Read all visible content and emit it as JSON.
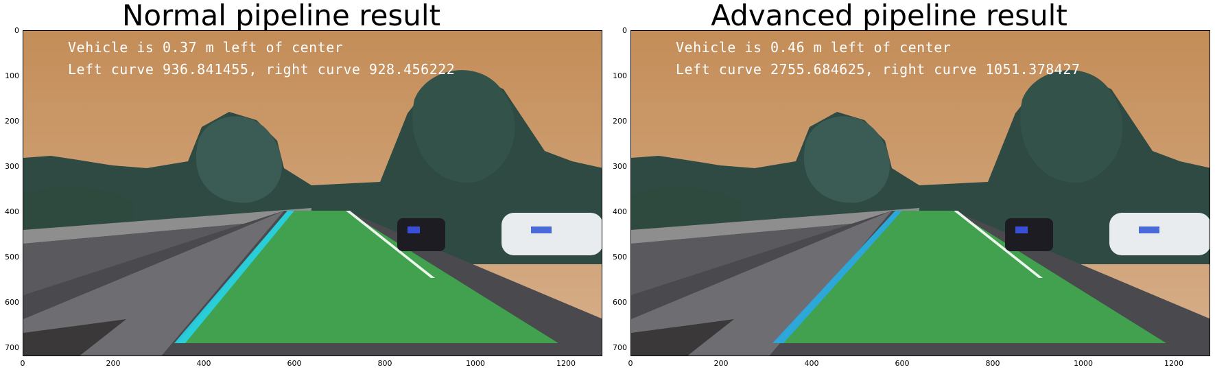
{
  "panels": [
    {
      "title": "Normal pipeline result",
      "vehicle_text": "Vehicle is 0.37 m left of center",
      "curve_text": "Left curve 936.841455, right curve 928.456222"
    },
    {
      "title": "Advanced pipeline result",
      "vehicle_text": "Vehicle is 0.46 m left of center",
      "curve_text": "Left curve 2755.684625, right curve 1051.378427"
    }
  ],
  "axes": {
    "y_ticks": [
      "0",
      "100",
      "200",
      "300",
      "400",
      "500",
      "600",
      "700"
    ],
    "x_ticks": [
      "0",
      "200",
      "400",
      "600",
      "800",
      "1000",
      "1200"
    ]
  },
  "colors": {
    "sky": "#c9935f",
    "lane_fill": "#3fbf4f",
    "lane_line": "#27d3e8",
    "road": "#4a4a4e"
  }
}
